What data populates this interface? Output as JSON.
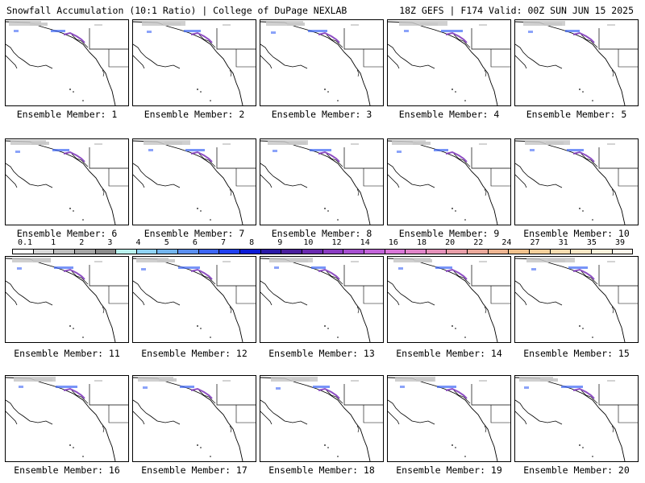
{
  "header": {
    "left": "Snowfall Accumulation (10:1 Ratio) | College of DuPage NEXLAB",
    "right": "18Z GEFS | F174 Valid: 00Z SUN JUN 15 2025"
  },
  "panel_label_prefix": "Ensemble Member:",
  "members": [
    1,
    2,
    3,
    4,
    5,
    6,
    7,
    8,
    9,
    10,
    11,
    12,
    13,
    14,
    15,
    16,
    17,
    18,
    19,
    20
  ],
  "colorbar": {
    "labels": [
      "0.1",
      "1",
      "2",
      "3",
      "4",
      "5",
      "6",
      "7",
      "8",
      "9",
      "10",
      "12",
      "14",
      "16",
      "18",
      "20",
      "22",
      "24",
      "27",
      "31",
      "35",
      "39"
    ],
    "colors": [
      "#ffffff",
      "#d9d9d9",
      "#bfbfbf",
      "#a6a6a6",
      "#8c8c8c",
      "#b9f2ee",
      "#8fd3f5",
      "#73b5ee",
      "#5b8ff0",
      "#3d66f5",
      "#2040f0",
      "#0a1ad6",
      "#2b1aa8",
      "#4a1f9e",
      "#6a2bb0",
      "#8a3cc2",
      "#a64fd0",
      "#c264d9",
      "#d977d8",
      "#e085c9",
      "#e591ba",
      "#e89ea8",
      "#eba99b",
      "#eeb591",
      "#f1c28c",
      "#f5d09b",
      "#f8ddb0",
      "#fbe8c6",
      "#fdf2dc",
      "#fff8ec"
    ]
  },
  "colors": {
    "land_outline": "#000000",
    "snow_light": "#c8c8c8",
    "snow_blue": "#3d66f5",
    "snow_purple": "#7a2fb8"
  }
}
